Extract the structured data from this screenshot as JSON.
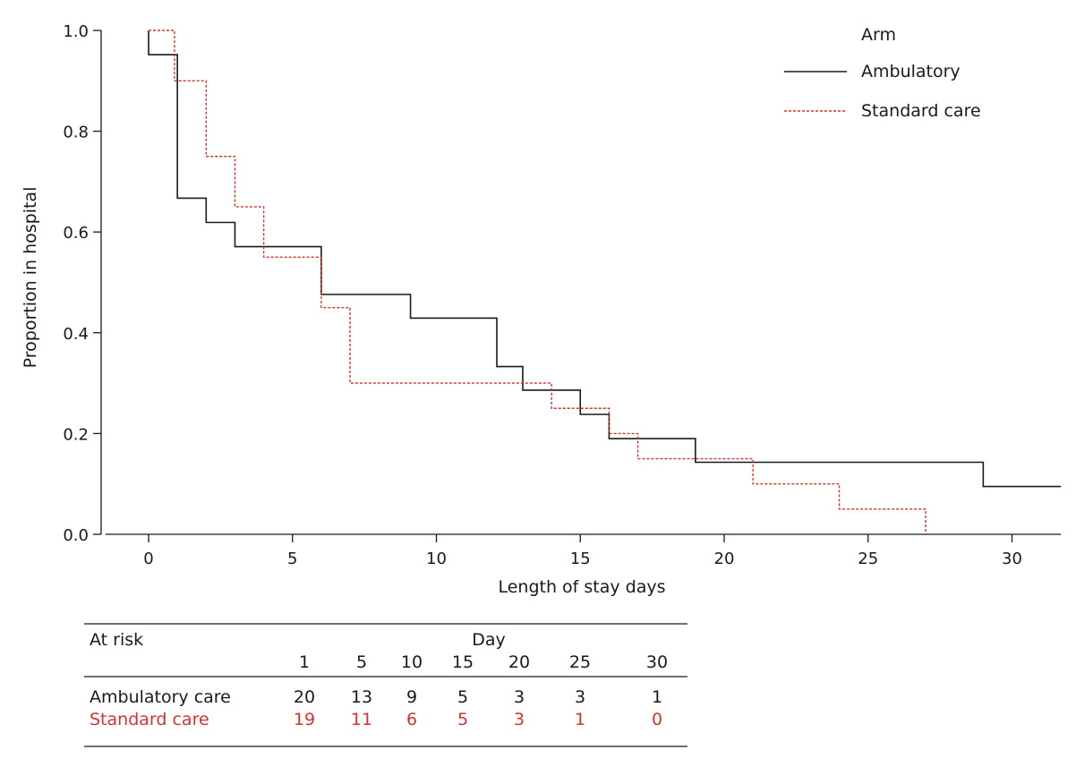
{
  "colors": {
    "ambulatory": "#1a1a1a",
    "standard": "#d8312c",
    "axis": "#1a1a1a"
  },
  "chart_data": {
    "type": "line",
    "subtype": "step (Kaplan-Meier)",
    "xlabel": "Length of stay days",
    "ylabel": "Proportion in hospital",
    "xlim": [
      -1.5,
      31.7
    ],
    "ylim": [
      0,
      1.0
    ],
    "xticks": [
      0,
      5,
      10,
      15,
      20,
      25,
      30
    ],
    "yticks": [
      "0.0",
      "0.2",
      "0.4",
      "0.6",
      "0.8",
      "1.0"
    ],
    "grid": false,
    "legend": {
      "title": "Arm",
      "position": "top-right"
    },
    "series": [
      {
        "name": "Ambulatory",
        "style": "solid",
        "color": "#1a1a1a",
        "steps": [
          {
            "x": 0,
            "y": 1.0
          },
          {
            "x": 0,
            "y": 0.952
          },
          {
            "x": 1,
            "y": 0.667
          },
          {
            "x": 2,
            "y": 0.619
          },
          {
            "x": 3,
            "y": 0.571
          },
          {
            "x": 6,
            "y": 0.476
          },
          {
            "x": 9.1,
            "y": 0.429
          },
          {
            "x": 12.1,
            "y": 0.333
          },
          {
            "x": 13,
            "y": 0.286
          },
          {
            "x": 15,
            "y": 0.238
          },
          {
            "x": 16,
            "y": 0.19
          },
          {
            "x": 19,
            "y": 0.143
          },
          {
            "x": 29,
            "y": 0.095
          }
        ],
        "x_end": 31.7
      },
      {
        "name": "Standard care",
        "style": "dotted",
        "color": "#d8312c",
        "steps": [
          {
            "x": 0,
            "y": 1.0
          },
          {
            "x": 0.9,
            "y": 0.9
          },
          {
            "x": 2,
            "y": 0.75
          },
          {
            "x": 3,
            "y": 0.65
          },
          {
            "x": 4,
            "y": 0.55
          },
          {
            "x": 6,
            "y": 0.45
          },
          {
            "x": 7,
            "y": 0.3
          },
          {
            "x": 14,
            "y": 0.25
          },
          {
            "x": 16,
            "y": 0.2
          },
          {
            "x": 17,
            "y": 0.15
          },
          {
            "x": 21,
            "y": 0.1
          },
          {
            "x": 24,
            "y": 0.05
          },
          {
            "x": 27,
            "y": 0.0
          }
        ],
        "x_end": 27
      }
    ]
  },
  "risk_table": {
    "title": "At risk",
    "day_header": "Day",
    "days": [
      "1",
      "5",
      "10",
      "15",
      "20",
      "25",
      "30"
    ],
    "rows": [
      {
        "label": "Ambulatory care",
        "values": [
          "20",
          "13",
          "9",
          "5",
          "3",
          "3",
          "1"
        ]
      },
      {
        "label": "Standard care",
        "values": [
          "19",
          "11",
          "6",
          "5",
          "3",
          "1",
          "0"
        ]
      }
    ]
  }
}
